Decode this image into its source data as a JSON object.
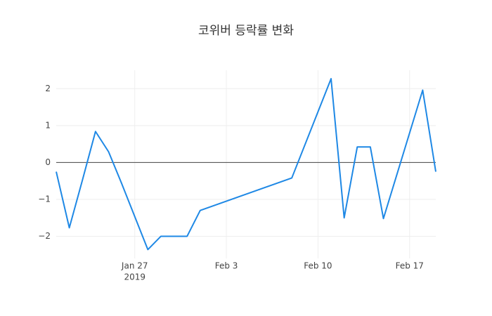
{
  "chart_data": {
    "type": "line",
    "title": "코위버 등락률 변화",
    "x": [
      "2019-01-21",
      "2019-01-22",
      "2019-01-23",
      "2019-01-24",
      "2019-01-25",
      "2019-01-26",
      "2019-01-28",
      "2019-01-29",
      "2019-01-31",
      "2019-02-01",
      "2019-02-08",
      "2019-02-11",
      "2019-02-12",
      "2019-02-13",
      "2019-02-14",
      "2019-02-15",
      "2019-02-18",
      "2019-02-19"
    ],
    "series": [
      {
        "color": "#1e88e5",
        "values": [
          -0.25,
          -1.77,
          -0.48,
          0.84,
          0.29,
          -0.57,
          -2.36,
          -2.0,
          -2.0,
          -1.3,
          -0.42,
          2.27,
          -1.5,
          0.42,
          0.42,
          -1.52,
          1.96,
          -0.25
        ]
      }
    ],
    "xlim": [
      "2019-01-21",
      "2019-02-19"
    ],
    "xticks": [
      {
        "value": "2019-01-27",
        "label": "Jan 27",
        "sublabel": "2019"
      },
      {
        "value": "2019-02-03",
        "label": "Feb 3"
      },
      {
        "value": "2019-02-10",
        "label": "Feb 10"
      },
      {
        "value": "2019-02-17",
        "label": "Feb 17"
      }
    ],
    "ylim": [
      -2.6,
      2.5
    ],
    "yticks": [
      {
        "value": -2,
        "label": "−2"
      },
      {
        "value": -1,
        "label": "−1"
      },
      0,
      1,
      2
    ],
    "grid": true
  }
}
